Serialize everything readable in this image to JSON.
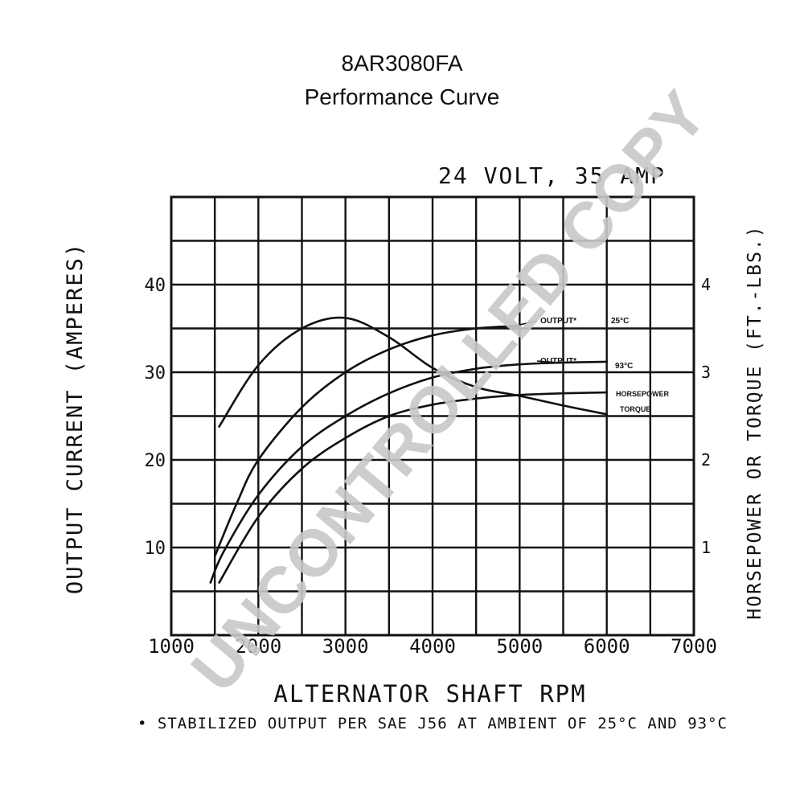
{
  "chart_data": {
    "type": "line",
    "title": "8AR3080FA",
    "subtitle": "Performance Curve",
    "rating": "24 VOLT, 35 AMP",
    "xlabel": "ALTERNATOR SHAFT RPM",
    "ylabel": "OUTPUT CURRENT (AMPERES)",
    "y2label": "HORSEPOWER OR TORQUE (FT.-LBS.)",
    "footnote": "• STABILIZED OUTPUT PER SAE J56 AT AMBIENT OF 25°C AND 93°C",
    "watermark": "UNCONTROLLED COPY",
    "xlim": [
      1000,
      7000
    ],
    "ylim": [
      0,
      50
    ],
    "y2lim": [
      0,
      5
    ],
    "x_ticks": [
      {
        "value": 1000,
        "label": "1000"
      },
      {
        "value": 2000,
        "label": "2000"
      },
      {
        "value": 3000,
        "label": "3000"
      },
      {
        "value": 4000,
        "label": "4000"
      },
      {
        "value": 5000,
        "label": "5000"
      },
      {
        "value": 6000,
        "label": "6000"
      },
      {
        "value": 7000,
        "label": "7000"
      }
    ],
    "y_ticks": [
      {
        "value": 10,
        "label": "10"
      },
      {
        "value": 20,
        "label": "20"
      },
      {
        "value": 30,
        "label": "30"
      },
      {
        "value": 40,
        "label": "40"
      }
    ],
    "y2_ticks": [
      {
        "value": 1,
        "label": "1"
      },
      {
        "value": 2,
        "label": "2"
      },
      {
        "value": 3,
        "label": "3"
      },
      {
        "value": 4,
        "label": "4"
      }
    ],
    "grid": true,
    "series": [
      {
        "name": "OUTPUT* 25°C",
        "axis": "left",
        "x": [
          1500,
          1750,
          2000,
          2500,
          3000,
          3500,
          4000,
          4500,
          5000
        ],
        "y": [
          9,
          15,
          20,
          26,
          30,
          32.6,
          34.2,
          35,
          35.3
        ]
      },
      {
        "name": "OUTPUT* 93°C",
        "axis": "left",
        "x": [
          1450,
          1600,
          2000,
          2500,
          3000,
          3500,
          4000,
          4500,
          5000,
          5500,
          6000
        ],
        "y": [
          6,
          9.5,
          16,
          21.5,
          25,
          27.6,
          29.4,
          30.4,
          30.9,
          31.1,
          31.2
        ]
      },
      {
        "name": "HORSEPOWER",
        "axis": "right",
        "x": [
          1550,
          2000,
          2500,
          3000,
          3500,
          4000,
          4500,
          5000,
          5500,
          6000
        ],
        "y": [
          0.6,
          1.35,
          1.9,
          2.25,
          2.5,
          2.63,
          2.7,
          2.74,
          2.76,
          2.77
        ]
      },
      {
        "name": "TORQUE",
        "axis": "right",
        "x": [
          1550,
          2000,
          2500,
          3000,
          3500,
          4000,
          4500,
          5000,
          5500,
          6000
        ],
        "y": [
          2.38,
          3.08,
          3.5,
          3.62,
          3.4,
          3.05,
          2.83,
          2.73,
          2.62,
          2.52
        ]
      }
    ]
  },
  "legend": {
    "output_25": {
      "label": "OUTPUT*",
      "temp": "25°C"
    },
    "output_93": {
      "label": "OUTPUT*",
      "temp": "93°C"
    },
    "horsepower": "HORSEPOWER",
    "torque": "TORQUE"
  }
}
